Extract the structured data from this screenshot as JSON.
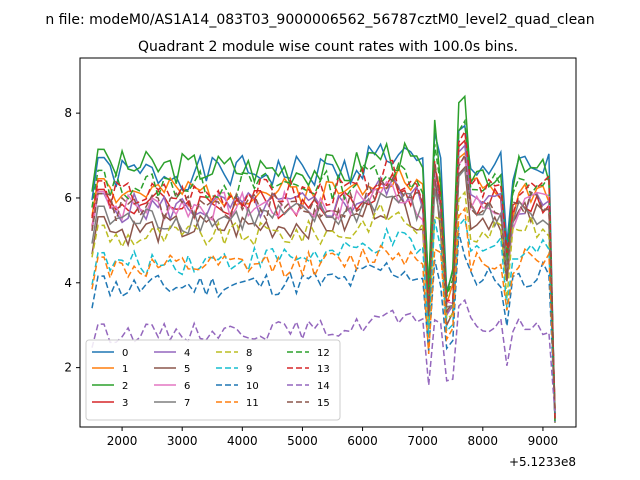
{
  "chart_data": {
    "type": "line",
    "title": "Quadrant 2 module wise count rates with 100.0s bins.",
    "suptitle": "n file: modeM0/AS1A14_083T03_9000006562_56787cztM0_level2_quad_clean",
    "xlabel": "",
    "ylabel": "",
    "x_offset_label": "+5.1233e8",
    "xlim": [
      1300,
      9550
    ],
    "ylim": [
      0.6,
      9.3
    ],
    "xticks": [
      2000,
      3000,
      4000,
      5000,
      6000,
      7000,
      8000,
      9000
    ],
    "yticks": [
      2,
      4,
      6,
      8
    ],
    "grid": false,
    "legend_position": "lower-left",
    "legend_columns": 4,
    "x": {
      "start": 1500,
      "step": 100,
      "count": 78
    },
    "series": [
      {
        "name": "0",
        "color": "#1f77b4",
        "dashed": false,
        "base": 6.55,
        "end": 6.7,
        "amp": 0.4,
        "seed": 1
      },
      {
        "name": "1",
        "color": "#ff7f0e",
        "dashed": false,
        "base": 6.1,
        "end": 6.2,
        "amp": 0.35,
        "seed": 2
      },
      {
        "name": "2",
        "color": "#2ca02c",
        "dashed": false,
        "base": 6.75,
        "end": 6.6,
        "amp": 0.4,
        "seed": 3
      },
      {
        "name": "3",
        "color": "#d62728",
        "dashed": false,
        "base": 5.85,
        "end": 5.9,
        "amp": 0.35,
        "seed": 4
      },
      {
        "name": "4",
        "color": "#9467bd",
        "dashed": false,
        "base": 5.75,
        "end": 5.9,
        "amp": 0.35,
        "seed": 5
      },
      {
        "name": "5",
        "color": "#8c564b",
        "dashed": false,
        "base": 5.2,
        "end": 5.6,
        "amp": 0.35,
        "seed": 6
      },
      {
        "name": "6",
        "color": "#e377c2",
        "dashed": false,
        "base": 5.8,
        "end": 5.8,
        "amp": 0.35,
        "seed": 7
      },
      {
        "name": "7",
        "color": "#7f7f7f",
        "dashed": false,
        "base": 5.45,
        "end": 5.7,
        "amp": 0.35,
        "seed": 8
      },
      {
        "name": "8",
        "color": "#bcbd22",
        "dashed": true,
        "base": 5.05,
        "end": 5.3,
        "amp": 0.3,
        "seed": 9
      },
      {
        "name": "9",
        "color": "#17becf",
        "dashed": true,
        "base": 4.4,
        "end": 4.9,
        "amp": 0.3,
        "seed": 10
      },
      {
        "name": "10",
        "color": "#1f77b4",
        "dashed": true,
        "base": 3.85,
        "end": 4.2,
        "amp": 0.3,
        "seed": 11
      },
      {
        "name": "11",
        "color": "#ff7f0e",
        "dashed": true,
        "base": 4.3,
        "end": 4.6,
        "amp": 0.3,
        "seed": 12
      },
      {
        "name": "12",
        "color": "#2ca02c",
        "dashed": true,
        "base": 6.3,
        "end": 6.3,
        "amp": 0.35,
        "seed": 13
      },
      {
        "name": "13",
        "color": "#d62728",
        "dashed": true,
        "base": 6.05,
        "end": 6.2,
        "amp": 0.35,
        "seed": 14
      },
      {
        "name": "14",
        "color": "#9467bd",
        "dashed": true,
        "base": 2.8,
        "end": 3.0,
        "amp": 0.22,
        "seed": 15
      },
      {
        "name": "15",
        "color": "#8c564b",
        "dashed": true,
        "base": 5.75,
        "end": 5.9,
        "amp": 0.35,
        "seed": 16
      }
    ]
  }
}
